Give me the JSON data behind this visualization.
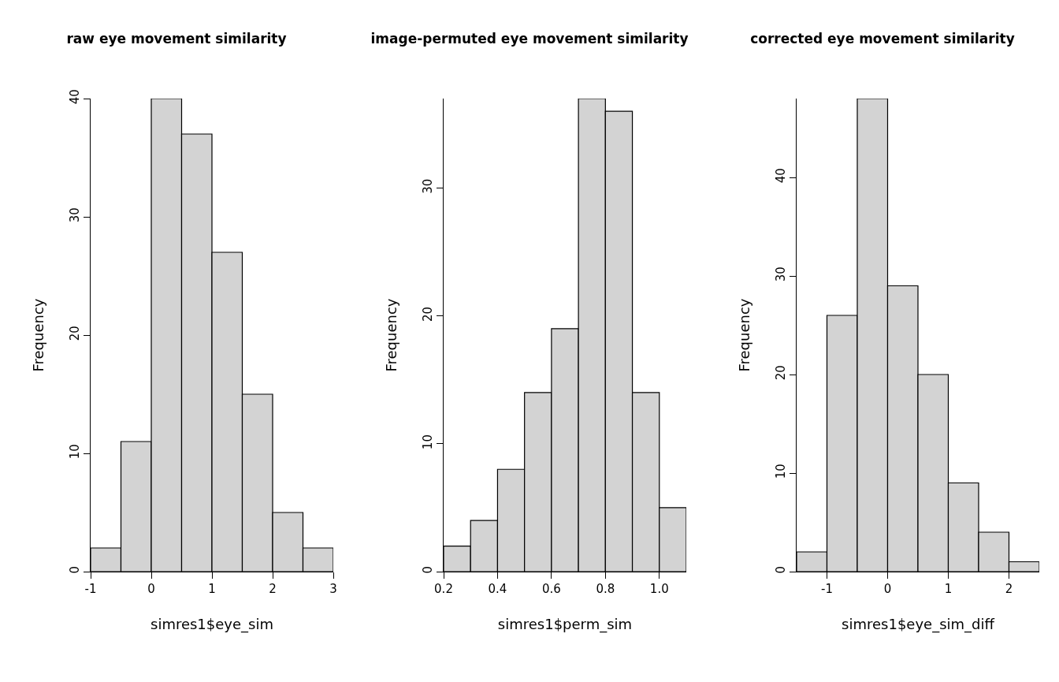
{
  "chart_data": [
    {
      "type": "histogram",
      "title": "raw eye movement similarity",
      "xlabel": "simres1$eye_sim",
      "ylabel": "Frequency",
      "bins": [
        -1,
        -0.5,
        0,
        0.5,
        1,
        1.5,
        2,
        2.5,
        3
      ],
      "values": [
        2,
        11,
        40,
        37,
        27,
        15,
        5,
        2
      ],
      "color": "#d3d3d3",
      "xlim": [
        -1,
        3
      ],
      "xticks": [
        -1,
        0,
        1,
        2,
        3
      ],
      "ylim": [
        0,
        40
      ],
      "yticks": [
        0,
        10,
        20,
        30,
        40
      ],
      "grid": false,
      "legend": false
    },
    {
      "type": "histogram",
      "title": "image-permuted eye movement similarity",
      "xlabel": "simres1$perm_sim",
      "ylabel": "Frequency",
      "bins": [
        0.2,
        0.3,
        0.4,
        0.5,
        0.6,
        0.7,
        0.8,
        0.9,
        1.0,
        1.1
      ],
      "values": [
        2,
        4,
        8,
        14,
        19,
        37,
        36,
        14,
        5
      ],
      "color": "#d3d3d3",
      "xlim": [
        0.2,
        1.1
      ],
      "xticks": [
        0.2,
        0.4,
        0.6,
        0.8,
        {
          "value": 1.0,
          "label": "1.0"
        }
      ],
      "ylim": [
        0,
        37
      ],
      "yticks": [
        0,
        10,
        20,
        30
      ],
      "grid": false,
      "legend": false
    },
    {
      "type": "histogram",
      "title": "corrected eye movement similarity",
      "xlabel": "simres1$eye_sim_diff",
      "ylabel": "Frequency",
      "bins": [
        -1.5,
        -1,
        -0.5,
        0,
        0.5,
        1,
        1.5,
        2,
        2.5
      ],
      "values": [
        2,
        26,
        48,
        29,
        20,
        9,
        4,
        1
      ],
      "color": "#d3d3d3",
      "xlim": [
        -1.5,
        2.5
      ],
      "xticks": [
        -1,
        0,
        1,
        2
      ],
      "ylim": [
        0,
        48
      ],
      "yticks": [
        0,
        10,
        20,
        30,
        40
      ],
      "grid": false,
      "legend": false
    }
  ]
}
